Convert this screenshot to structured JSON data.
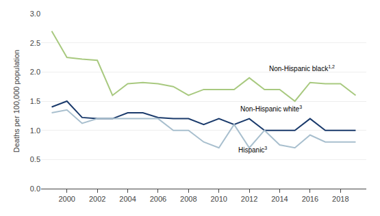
{
  "chart_data": {
    "type": "line",
    "x": [
      1999,
      2000,
      2001,
      2002,
      2003,
      2004,
      2005,
      2006,
      2007,
      2008,
      2009,
      2010,
      2011,
      2012,
      2013,
      2014,
      2015,
      2016,
      2017,
      2018,
      2019
    ],
    "series": [
      {
        "color": "#a8c97f",
        "values": [
          2.7,
          2.25,
          2.22,
          2.2,
          1.6,
          1.8,
          1.82,
          1.8,
          1.75,
          1.6,
          1.7,
          1.7,
          1.7,
          1.9,
          1.7,
          1.7,
          1.5,
          1.82,
          1.8,
          1.8,
          1.6
        ]
      },
      {
        "color": "#1a3a6b",
        "values": [
          1.4,
          1.5,
          1.22,
          1.2,
          1.2,
          1.3,
          1.3,
          1.22,
          1.2,
          1.2,
          1.1,
          1.2,
          1.1,
          1.2,
          1.0,
          1.0,
          1.0,
          1.2,
          1.0,
          1.0,
          1.0
        ]
      },
      {
        "color": "#a8bfce",
        "values": [
          1.3,
          1.35,
          1.12,
          1.2,
          1.2,
          1.2,
          1.2,
          1.2,
          1.0,
          1.0,
          0.8,
          0.7,
          1.1,
          0.7,
          1.0,
          0.75,
          0.7,
          0.92,
          0.8,
          0.8,
          0.8
        ]
      }
    ],
    "y_label": "Deaths per 100,000 population",
    "xlim": [
      1998.3,
      2019.7
    ],
    "xticks": [
      2000,
      2002,
      2004,
      2006,
      2008,
      2010,
      2012,
      2014,
      2016,
      2018
    ],
    "ylim": [
      0.0,
      3.0
    ],
    "yticks": [
      {
        "value": 0.0,
        "label": "0.0"
      },
      0.5,
      {
        "value": 1.0,
        "label": "1.0"
      },
      1.5,
      {
        "value": 2.0,
        "label": "2.0"
      },
      2.5,
      {
        "value": 3.0,
        "label": "3.0"
      }
    ],
    "grid": true,
    "annotations": [
      {
        "text": "Non-Hispanic black",
        "superscript": "1,2",
        "x": 2013.2,
        "y": 1.97
      },
      {
        "text": "Non-Hispanic white",
        "superscript": "3",
        "x": 2011.3,
        "y": 1.28
      },
      {
        "text": "Hispanic",
        "superscript": "3",
        "x": 2011.2,
        "y": 0.58
      }
    ]
  }
}
